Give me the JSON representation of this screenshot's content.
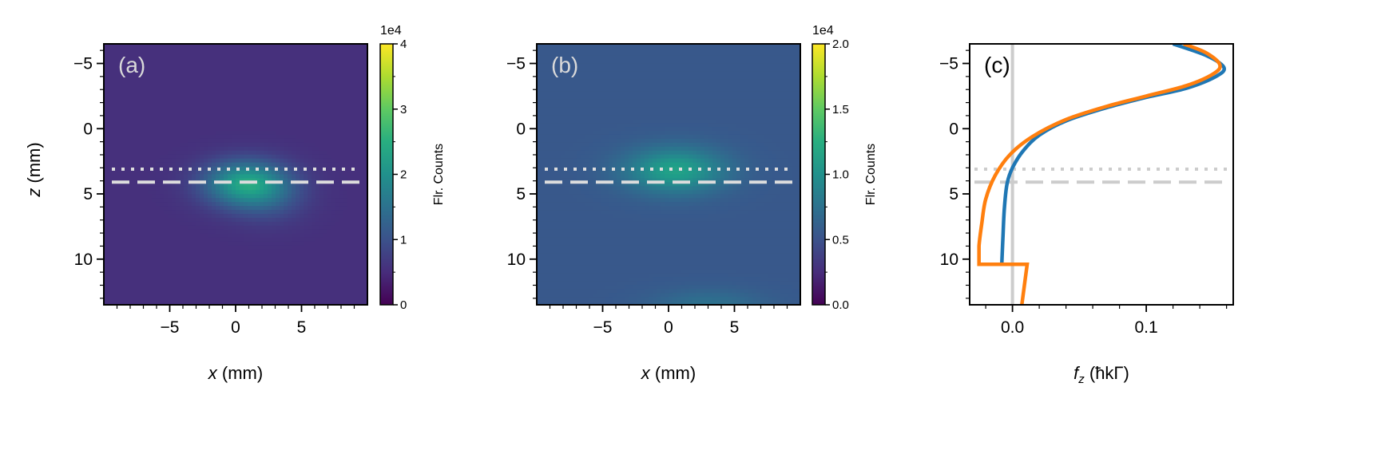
{
  "chart_data": [
    {
      "type": "heatmap",
      "panel_label": "(a)",
      "xlabel_var": "x",
      "xlabel_unit": " (mm)",
      "ylabel_var": "z",
      "ylabel_unit": " (mm)",
      "xlim": [
        -10,
        10
      ],
      "ylim": [
        13.5,
        -6.5
      ],
      "xticks": [
        -5,
        0,
        5
      ],
      "yticks": [
        -5,
        0,
        5,
        10
      ],
      "background_level": 0.55,
      "blobs": [
        {
          "x": 0.8,
          "z": 4.2,
          "sx": 2.2,
          "sz": 1.2,
          "amp": 1.75
        },
        {
          "x": 2.5,
          "z": 5.5,
          "sx": 2.0,
          "sz": 1.3,
          "amp": 0.35
        }
      ],
      "colorbar": {
        "label": "Flr. Counts",
        "exponent": "1e4",
        "min": 0,
        "max": 4,
        "ticks": [
          "0",
          "1",
          "2",
          "3",
          "4"
        ]
      },
      "hlines": [
        {
          "z": 3.1,
          "style": "dotted",
          "color": "#dddddd"
        },
        {
          "z": 4.1,
          "style": "dashed",
          "color": "#dddddd"
        }
      ]
    },
    {
      "type": "heatmap",
      "panel_label": "(b)",
      "xlabel_var": "x",
      "xlabel_unit": " (mm)",
      "xlim": [
        -10,
        10
      ],
      "ylim": [
        13.5,
        -6.5
      ],
      "xticks": [
        -5,
        0,
        5
      ],
      "yticks": [
        -5,
        0,
        5,
        10
      ],
      "background_level": 0.55,
      "blobs": [
        {
          "x": 0.5,
          "z": 3.2,
          "sx": 2.6,
          "sz": 1.2,
          "amp": 0.6
        },
        {
          "x": 3.0,
          "z": 13.6,
          "sx": 3.0,
          "sz": 0.9,
          "amp": 0.2
        }
      ],
      "colorbar": {
        "label": "Flr. Counts",
        "exponent": "1e4",
        "min": 0.0,
        "max": 2.0,
        "ticks": [
          "0.0",
          "0.5",
          "1.0",
          "1.5",
          "2.0"
        ]
      },
      "hlines": [
        {
          "z": 3.1,
          "style": "dotted",
          "color": "#dddddd"
        },
        {
          "z": 4.1,
          "style": "dashed",
          "color": "#dddddd"
        }
      ]
    },
    {
      "type": "line",
      "panel_label": "(c)",
      "xlabel_var": "f",
      "xlabel_sub": "z",
      "xlabel_unit": " (ħkΓ)",
      "xlim": [
        -0.032,
        0.165
      ],
      "ylim": [
        13.5,
        -6.5
      ],
      "xticks": [
        "0.0",
        "0.1"
      ],
      "xtick_values": [
        0.0,
        0.1
      ],
      "yticks": [
        -5,
        0,
        5,
        10
      ],
      "vline": {
        "x": 0.0,
        "color": "#cccccc"
      },
      "hlines": [
        {
          "z": 3.1,
          "style": "dotted",
          "color": "#cccccc"
        },
        {
          "z": 4.1,
          "style": "dashed",
          "color": "#cccccc"
        }
      ],
      "series": [
        {
          "color": "#1f77b4",
          "points": [
            [
              0.12,
              -6.5
            ],
            [
              0.145,
              -5.6
            ],
            [
              0.158,
              -4.7
            ],
            [
              0.152,
              -4.0
            ],
            [
              0.13,
              -3.1
            ],
            [
              0.1,
              -2.4
            ],
            [
              0.07,
              -1.6
            ],
            [
              0.04,
              -0.6
            ],
            [
              0.02,
              0.5
            ],
            [
              0.008,
              1.7
            ],
            [
              0.0,
              3.0
            ],
            [
              -0.004,
              4.2
            ],
            [
              -0.006,
              6.0
            ],
            [
              -0.007,
              8.0
            ],
            [
              -0.008,
              10.4
            ]
          ]
        },
        {
          "color": "#ff7f0e",
          "points": [
            [
              0.128,
              -6.5
            ],
            [
              0.145,
              -5.8
            ],
            [
              0.155,
              -4.9
            ],
            [
              0.15,
              -4.2
            ],
            [
              0.13,
              -3.3
            ],
            [
              0.1,
              -2.5
            ],
            [
              0.07,
              -1.7
            ],
            [
              0.04,
              -0.7
            ],
            [
              0.015,
              0.6
            ],
            [
              -0.002,
              2.0
            ],
            [
              -0.013,
              3.6
            ],
            [
              -0.02,
              5.4
            ],
            [
              -0.023,
              7.3
            ],
            [
              -0.025,
              9.0
            ],
            [
              -0.025,
              10.4
            ],
            [
              0.011,
              10.4
            ],
            [
              0.007,
              13.5
            ]
          ]
        }
      ]
    }
  ]
}
